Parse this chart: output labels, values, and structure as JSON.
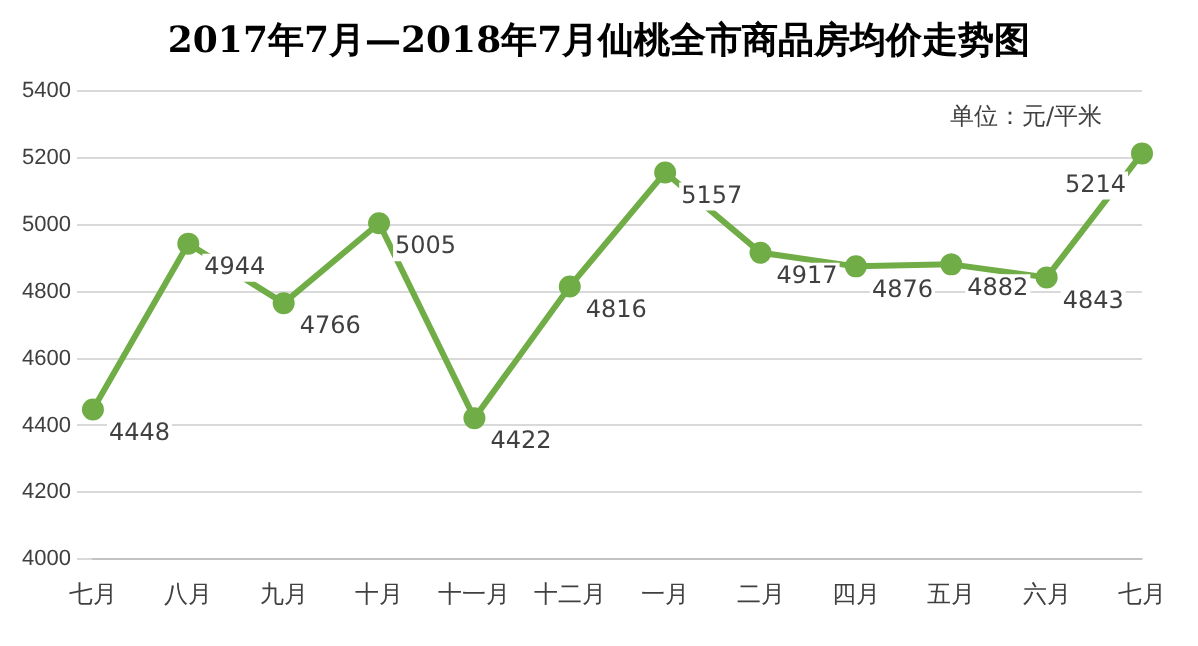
{
  "chart_data": {
    "type": "line",
    "title": "2017年7月—2018年7月仙桃全市商品房均价走势图",
    "annotations": [
      "单位：元/平米"
    ],
    "categories": [
      "七月",
      "八月",
      "九月",
      "十月",
      "十一月",
      "十二月",
      "一月",
      "二月",
      "四月",
      "五月",
      "六月",
      "七月"
    ],
    "series": [
      {
        "color": "#70ad47",
        "values": [
          4448,
          4944,
          4766,
          5005,
          4422,
          4816,
          5157,
          4917,
          4876,
          4882,
          4843,
          5214
        ]
      }
    ],
    "ylim": [
      4000,
      5400
    ],
    "yticks": [
      4000,
      4200,
      4400,
      4600,
      4800,
      5000,
      5200,
      5400
    ],
    "grid": "y",
    "legend": false,
    "marker": "circle",
    "line_style": "solid",
    "data_labels": true
  }
}
